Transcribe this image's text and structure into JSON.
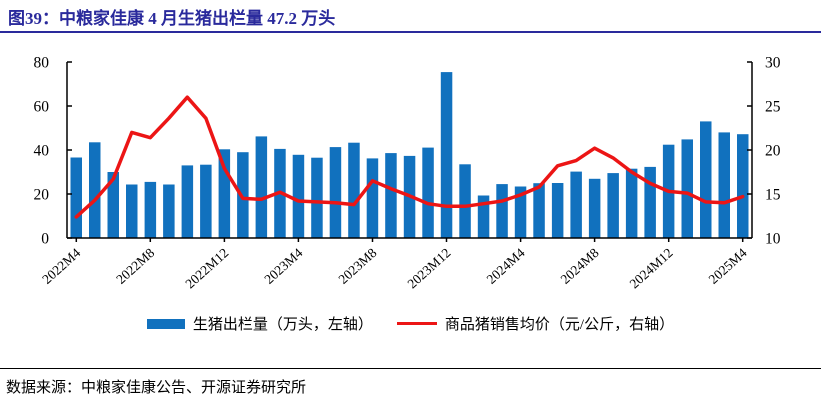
{
  "header": {
    "title": "图39：中粮家佳康 4 月生猪出栏量 47.2 万头"
  },
  "colors": {
    "title_blue": "#2a2a9c",
    "bar_blue": "#1171be",
    "line_red": "#ec1515",
    "axis_black": "#000000"
  },
  "legend": {
    "bar_label": "生猪出栏量（万头，左轴）",
    "line_label": "商品猪销售均价（元/公斤，右轴）"
  },
  "footer": {
    "source": "数据来源：中粮家佳康公告、开源证券研究所"
  },
  "chart_data": {
    "type": "bar",
    "subtype": "combo bar + line, dual y-axis",
    "title": "中粮家佳康生猪出栏量与商品猪销售均价",
    "grid": false,
    "legend_position": "bottom",
    "categories": [
      "2022M4",
      "2022M5",
      "2022M6",
      "2022M7",
      "2022M8",
      "2022M9",
      "2022M10",
      "2022M11",
      "2022M12",
      "2023M1",
      "2023M2",
      "2023M3",
      "2023M4",
      "2023M5",
      "2023M6",
      "2023M7",
      "2023M8",
      "2023M9",
      "2023M10",
      "2023M11",
      "2023M12",
      "2024M1",
      "2024M2",
      "2024M3",
      "2024M4",
      "2024M5",
      "2024M6",
      "2024M7",
      "2024M8",
      "2024M9",
      "2024M10",
      "2024M11",
      "2024M12",
      "2025M1",
      "2025M2",
      "2025M3",
      "2025M4"
    ],
    "x_tick_labels": [
      "2022M4",
      "2022M8",
      "2022M12",
      "2023M4",
      "2023M8",
      "2023M12",
      "2024M4",
      "2024M8",
      "2024M12",
      "2025M4"
    ],
    "left_axis": {
      "label": "万头",
      "range": [
        0,
        80
      ],
      "ticks": [
        0,
        20,
        40,
        60,
        80
      ]
    },
    "right_axis": {
      "label": "元/公斤",
      "range": [
        10,
        30
      ],
      "ticks": [
        10,
        15,
        20,
        25,
        30
      ]
    },
    "series": [
      {
        "name": "生猪出栏量（万头，左轴）",
        "chart_type": "bar",
        "axis": "left",
        "color": "#1171be",
        "values": [
          36.6,
          43.5,
          30.0,
          24.3,
          25.5,
          24.3,
          33.0,
          33.3,
          40.3,
          39.0,
          46.2,
          40.5,
          37.8,
          36.5,
          41.3,
          43.3,
          36.2,
          38.6,
          37.3,
          41.1,
          75.4,
          33.5,
          19.3,
          24.5,
          23.4,
          24.9,
          25.0,
          30.2,
          26.9,
          29.5,
          31.5,
          32.3,
          42.4,
          44.8,
          53.0,
          48.0,
          47.2
        ]
      },
      {
        "name": "商品猪销售均价（元/公斤，右轴）",
        "chart_type": "line",
        "axis": "right",
        "color": "#ec1515",
        "values": [
          12.4,
          14.3,
          16.7,
          22.0,
          21.4,
          23.6,
          26.0,
          23.6,
          17.9,
          14.5,
          14.4,
          15.2,
          14.2,
          14.1,
          14.0,
          13.8,
          16.5,
          15.6,
          14.8,
          13.9,
          13.6,
          13.6,
          13.9,
          14.2,
          14.9,
          15.8,
          18.2,
          18.8,
          20.2,
          19.1,
          17.5,
          16.2,
          15.3,
          15.1,
          14.1,
          14.0,
          14.7
        ]
      }
    ]
  }
}
